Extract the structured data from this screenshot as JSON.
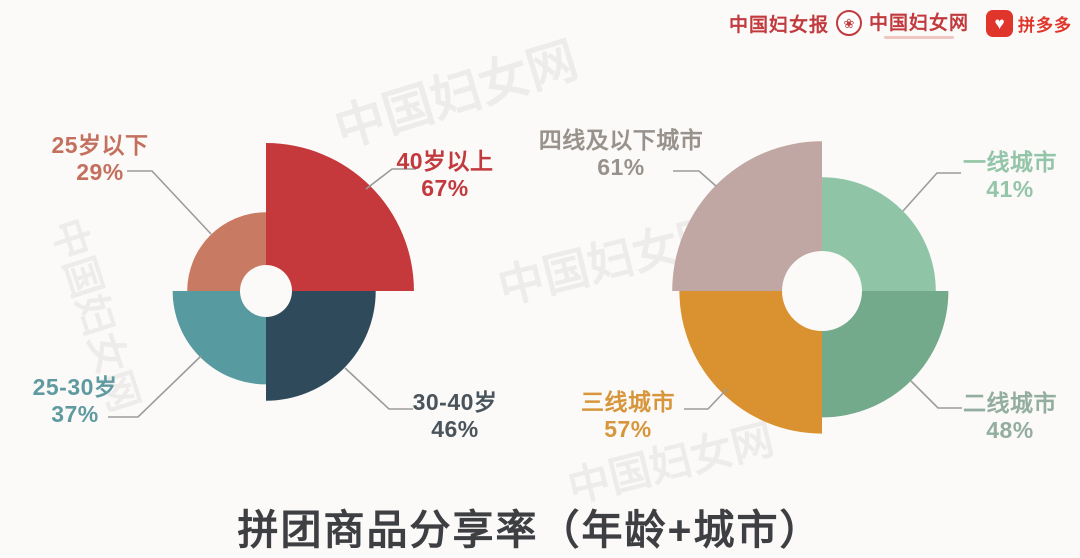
{
  "header": {
    "logos": [
      {
        "name": "中国妇女报"
      },
      {
        "name": "中国妇女网"
      },
      {
        "name": "拼多多"
      }
    ]
  },
  "watermark": {
    "text": "中国妇女网"
  },
  "title": "拼团商品分享率（年龄+城市）",
  "chart_data": [
    {
      "type": "rose",
      "name": "拼团商品分享率-年龄",
      "unit": "%",
      "legend_position": "callout-labels",
      "center": [
        266,
        291
      ],
      "inner_radius": 26,
      "radius_per_percent": 1.82,
      "segments": [
        {
          "label": "40岁以上",
          "value": 67,
          "value_label": "67%",
          "quadrant": "NE",
          "color": "#c5383c",
          "label_color": "#c23a3e"
        },
        {
          "label": "30-40岁",
          "value": 46,
          "value_label": "46%",
          "quadrant": "SE",
          "color": "#2f4a5b",
          "label_color": "#4a545c"
        },
        {
          "label": "25-30岁",
          "value": 37,
          "value_label": "37%",
          "quadrant": "SW",
          "color": "#579a9f",
          "label_color": "#5f9aa0"
        },
        {
          "label": "25岁以下",
          "value": 29,
          "value_label": "29%",
          "quadrant": "NW",
          "color": "#c87a62",
          "label_color": "#c4705e"
        }
      ]
    },
    {
      "type": "rose",
      "name": "拼团商品分享率-城市",
      "unit": "%",
      "legend_position": "callout-labels",
      "center": [
        822,
        291
      ],
      "inner_radius": 40,
      "radius_per_percent": 1.8,
      "segments": [
        {
          "label": "一线城市",
          "value": 41,
          "value_label": "41%",
          "quadrant": "NE",
          "color": "#8fc5a6",
          "label_color": "#94c5a8"
        },
        {
          "label": "二线城市",
          "value": 48,
          "value_label": "48%",
          "quadrant": "SE",
          "color": "#73aa8c",
          "label_color": "#93ada0"
        },
        {
          "label": "三线城市",
          "value": 57,
          "value_label": "57%",
          "quadrant": "SW",
          "color": "#d9922f",
          "label_color": "#d8963c"
        },
        {
          "label": "四线及以下城市",
          "value": 61,
          "value_label": "61%",
          "quadrant": "NW",
          "color": "#c0a7a3",
          "label_color": "#99928c"
        }
      ]
    }
  ]
}
